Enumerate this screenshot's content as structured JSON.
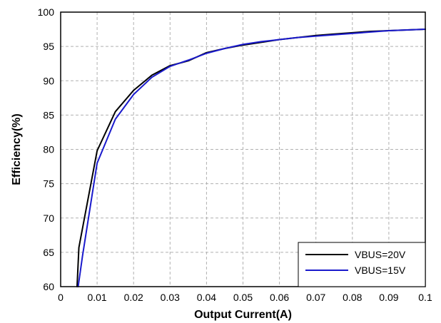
{
  "chart_data": {
    "type": "line",
    "title": "",
    "xlabel": "Output Current(A)",
    "ylabel": "Efficiency(%)",
    "xlim": [
      0,
      0.1
    ],
    "ylim": [
      60,
      100
    ],
    "x_ticks": [
      "0",
      "0.01",
      "0.02",
      "0.03",
      "0.04",
      "0.05",
      "0.06",
      "0.07",
      "0.08",
      "0.09",
      "0.1"
    ],
    "y_ticks": [
      "60",
      "65",
      "70",
      "75",
      "80",
      "85",
      "90",
      "95",
      "100"
    ],
    "grid": true,
    "legend_position": "bottom-right",
    "series": [
      {
        "name": "VBUS=20V",
        "color": "#000000",
        "x": [
          0.0045,
          0.005,
          0.01,
          0.015,
          0.02,
          0.025,
          0.03,
          0.035,
          0.04,
          0.045,
          0.05,
          0.055,
          0.06,
          0.065,
          0.07,
          0.075,
          0.08,
          0.085,
          0.09,
          0.095,
          0.1
        ],
        "y": [
          60,
          65.7,
          79.8,
          85.5,
          88.6,
          90.8,
          92.2,
          92.9,
          94.1,
          94.7,
          95.2,
          95.6,
          96.0,
          96.3,
          96.6,
          96.8,
          97.0,
          97.2,
          97.3,
          97.4,
          97.5
        ]
      },
      {
        "name": "VBUS=15V",
        "color": "#1a1acc",
        "x": [
          0.0048,
          0.006,
          0.01,
          0.015,
          0.02,
          0.025,
          0.03,
          0.035,
          0.04,
          0.045,
          0.05,
          0.055,
          0.06,
          0.065,
          0.07,
          0.075,
          0.08,
          0.085,
          0.09,
          0.095,
          0.1
        ],
        "y": [
          60,
          64.5,
          78.0,
          84.4,
          88.0,
          90.5,
          92.1,
          93.0,
          94.0,
          94.7,
          95.3,
          95.7,
          96.0,
          96.3,
          96.5,
          96.7,
          96.9,
          97.1,
          97.3,
          97.4,
          97.5
        ]
      }
    ]
  }
}
